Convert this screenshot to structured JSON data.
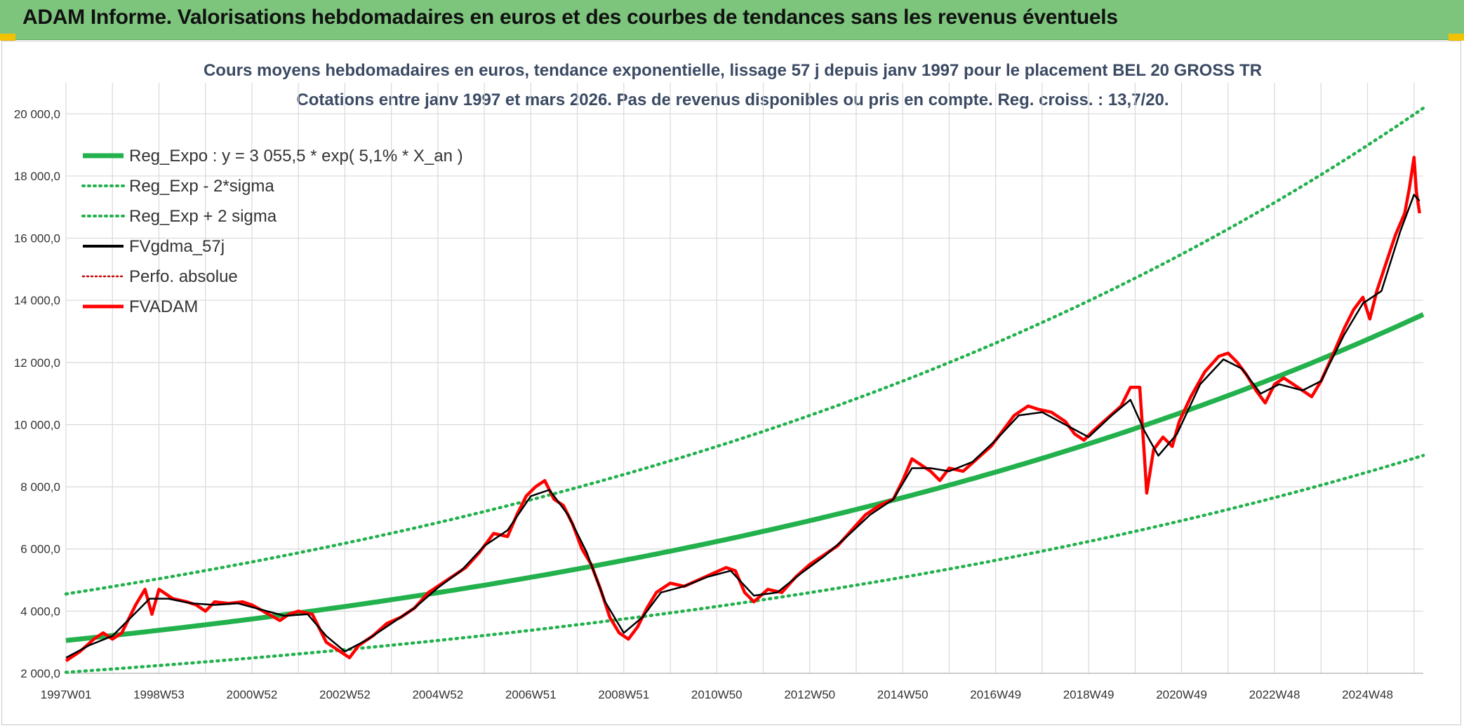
{
  "banner": {
    "title": "ADAM Informe. Valorisations hebdomadaires en euros et des courbes de tendances sans les revenus éventuels"
  },
  "colors": {
    "banner_bg": "#7dc57d",
    "trend": "#22b14c",
    "band": "#22b14c",
    "smooth": "#000000",
    "price": "#ff0000",
    "perfo": "#c00000",
    "grid": "#d9d9d9"
  },
  "chart_data": {
    "type": "line",
    "title": "Cours moyens hebdomadaires en euros, tendance exponentielle, lissage 57 j depuis janv 1997 pour le placement BEL 20 GROSS TR",
    "subtitle": "Cotations entre janv 1997 et mars 2026. Pas de revenus disponibles ou pris en compte. Reg. croiss. : 13,7/20.",
    "xlabel": "",
    "ylabel": "",
    "x_range": [
      1997.0,
      2026.2
    ],
    "ylim": [
      2000,
      21000
    ],
    "y_ticks": [
      2000,
      4000,
      6000,
      8000,
      10000,
      12000,
      14000,
      16000,
      18000,
      20000
    ],
    "y_tick_labels": [
      "2 000,0",
      "4 000,0",
      "6 000,0",
      "8 000,0",
      "10 000,0",
      "12 000,0",
      "14 000,0",
      "16 000,0",
      "18 000,0",
      "20 000,0"
    ],
    "x_ticks": [
      1997.0,
      1999.0,
      2001.0,
      2003.0,
      2005.0,
      2007.0,
      2009.0,
      2011.0,
      2013.0,
      2015.0,
      2017.0,
      2019.0,
      2021.0,
      2023.0,
      2025.0
    ],
    "x_tick_labels": [
      "1997W01",
      "1998W53",
      "2000W52",
      "2002W52",
      "2004W52",
      "2006W51",
      "2008W51",
      "2010W50",
      "2012W50",
      "2014W50",
      "2016W49",
      "2018W49",
      "2020W49",
      "2022W48",
      "2024W48"
    ],
    "grid": true,
    "legend_position": "top-left",
    "regression": {
      "a": 3055.5,
      "rate": 0.051,
      "band_low_factor": 0.665,
      "band_high_factor": 1.49
    },
    "series": [
      {
        "name": "Reg_Expo : y = 3 055,5 * exp( 5,1% *  X_an )",
        "kind": "trend",
        "style": "solid-thick"
      },
      {
        "name": "Reg_Exp - 2*sigma",
        "kind": "band_low",
        "style": "dotted"
      },
      {
        "name": "Reg_Exp + 2 sigma",
        "kind": "band_high",
        "style": "dotted"
      },
      {
        "name": "FVgdma_57j",
        "kind": "smooth",
        "style": "solid-thin"
      },
      {
        "name": "Perfo. absolue",
        "kind": "perfo",
        "style": "dotted-thin"
      },
      {
        "name": "FVADAM",
        "kind": "price",
        "style": "solid"
      }
    ],
    "price_points": [
      [
        1997.0,
        2400
      ],
      [
        1997.3,
        2700
      ],
      [
        1997.6,
        3100
      ],
      [
        1997.8,
        3300
      ],
      [
        1998.0,
        3100
      ],
      [
        1998.2,
        3300
      ],
      [
        1998.5,
        4200
      ],
      [
        1998.7,
        4700
      ],
      [
        1998.85,
        3900
      ],
      [
        1999.0,
        4700
      ],
      [
        1999.3,
        4400
      ],
      [
        1999.6,
        4300
      ],
      [
        1999.8,
        4200
      ],
      [
        2000.0,
        4000
      ],
      [
        2000.2,
        4300
      ],
      [
        2000.5,
        4250
      ],
      [
        2000.8,
        4300
      ],
      [
        2001.0,
        4200
      ],
      [
        2001.3,
        3950
      ],
      [
        2001.6,
        3700
      ],
      [
        2001.8,
        3900
      ],
      [
        2002.0,
        4000
      ],
      [
        2002.3,
        3900
      ],
      [
        2002.6,
        3000
      ],
      [
        2002.9,
        2700
      ],
      [
        2003.1,
        2500
      ],
      [
        2003.3,
        2900
      ],
      [
        2003.6,
        3200
      ],
      [
        2003.9,
        3600
      ],
      [
        2004.2,
        3800
      ],
      [
        2004.5,
        4100
      ],
      [
        2004.8,
        4600
      ],
      [
        2005.0,
        4800
      ],
      [
        2005.3,
        5100
      ],
      [
        2005.6,
        5400
      ],
      [
        2005.9,
        5900
      ],
      [
        2006.2,
        6500
      ],
      [
        2006.5,
        6400
      ],
      [
        2006.7,
        7100
      ],
      [
        2006.9,
        7700
      ],
      [
        2007.1,
        8000
      ],
      [
        2007.3,
        8200
      ],
      [
        2007.5,
        7600
      ],
      [
        2007.7,
        7400
      ],
      [
        2007.9,
        6800
      ],
      [
        2008.1,
        6000
      ],
      [
        2008.3,
        5500
      ],
      [
        2008.5,
        4700
      ],
      [
        2008.7,
        3800
      ],
      [
        2008.9,
        3300
      ],
      [
        2009.1,
        3100
      ],
      [
        2009.3,
        3500
      ],
      [
        2009.5,
        4100
      ],
      [
        2009.7,
        4600
      ],
      [
        2010.0,
        4900
      ],
      [
        2010.3,
        4800
      ],
      [
        2010.6,
        5000
      ],
      [
        2010.9,
        5200
      ],
      [
        2011.2,
        5400
      ],
      [
        2011.4,
        5300
      ],
      [
        2011.6,
        4600
      ],
      [
        2011.8,
        4300
      ],
      [
        2012.1,
        4700
      ],
      [
        2012.4,
        4600
      ],
      [
        2012.7,
        5100
      ],
      [
        2013.0,
        5500
      ],
      [
        2013.3,
        5800
      ],
      [
        2013.6,
        6100
      ],
      [
        2013.9,
        6600
      ],
      [
        2014.2,
        7100
      ],
      [
        2014.5,
        7400
      ],
      [
        2014.8,
        7600
      ],
      [
        2015.0,
        8200
      ],
      [
        2015.2,
        8900
      ],
      [
        2015.4,
        8700
      ],
      [
        2015.6,
        8500
      ],
      [
        2015.8,
        8200
      ],
      [
        2016.0,
        8600
      ],
      [
        2016.3,
        8500
      ],
      [
        2016.6,
        8900
      ],
      [
        2016.9,
        9300
      ],
      [
        2017.1,
        9700
      ],
      [
        2017.4,
        10300
      ],
      [
        2017.7,
        10600
      ],
      [
        2017.9,
        10500
      ],
      [
        2018.2,
        10400
      ],
      [
        2018.5,
        10100
      ],
      [
        2018.7,
        9700
      ],
      [
        2018.9,
        9500
      ],
      [
        2019.1,
        9800
      ],
      [
        2019.4,
        10200
      ],
      [
        2019.7,
        10600
      ],
      [
        2019.9,
        11200
      ],
      [
        2020.1,
        11200
      ],
      [
        2020.2,
        9000
      ],
      [
        2020.25,
        7800
      ],
      [
        2020.4,
        9200
      ],
      [
        2020.6,
        9600
      ],
      [
        2020.8,
        9300
      ],
      [
        2020.95,
        10100
      ],
      [
        2021.2,
        10900
      ],
      [
        2021.5,
        11700
      ],
      [
        2021.8,
        12200
      ],
      [
        2022.0,
        12300
      ],
      [
        2022.2,
        12000
      ],
      [
        2022.4,
        11600
      ],
      [
        2022.6,
        11100
      ],
      [
        2022.8,
        10700
      ],
      [
        2023.0,
        11300
      ],
      [
        2023.2,
        11500
      ],
      [
        2023.5,
        11200
      ],
      [
        2023.8,
        10900
      ],
      [
        2024.0,
        11400
      ],
      [
        2024.3,
        12400
      ],
      [
        2024.5,
        13100
      ],
      [
        2024.7,
        13700
      ],
      [
        2024.9,
        14100
      ],
      [
        2025.05,
        13400
      ],
      [
        2025.2,
        14300
      ],
      [
        2025.4,
        15200
      ],
      [
        2025.6,
        16100
      ],
      [
        2025.8,
        16800
      ],
      [
        2025.9,
        17600
      ],
      [
        2026.0,
        18600
      ],
      [
        2026.05,
        17500
      ],
      [
        2026.12,
        16800
      ]
    ],
    "smooth_points": [
      [
        1997.0,
        2500
      ],
      [
        1997.5,
        2900
      ],
      [
        1998.0,
        3200
      ],
      [
        1998.4,
        3800
      ],
      [
        1998.8,
        4400
      ],
      [
        1999.2,
        4400
      ],
      [
        1999.7,
        4250
      ],
      [
        2000.2,
        4200
      ],
      [
        2000.7,
        4250
      ],
      [
        2001.2,
        4050
      ],
      [
        2001.7,
        3850
      ],
      [
        2002.2,
        3900
      ],
      [
        2002.6,
        3200
      ],
      [
        2003.0,
        2700
      ],
      [
        2003.5,
        3100
      ],
      [
        2004.0,
        3600
      ],
      [
        2004.5,
        4100
      ],
      [
        2005.0,
        4750
      ],
      [
        2005.5,
        5300
      ],
      [
        2006.0,
        6100
      ],
      [
        2006.5,
        6600
      ],
      [
        2007.0,
        7700
      ],
      [
        2007.4,
        7900
      ],
      [
        2007.8,
        7100
      ],
      [
        2008.2,
        5900
      ],
      [
        2008.6,
        4300
      ],
      [
        2009.0,
        3300
      ],
      [
        2009.4,
        3800
      ],
      [
        2009.8,
        4600
      ],
      [
        2010.3,
        4800
      ],
      [
        2010.8,
        5100
      ],
      [
        2011.3,
        5300
      ],
      [
        2011.8,
        4500
      ],
      [
        2012.3,
        4600
      ],
      [
        2012.8,
        5200
      ],
      [
        2013.3,
        5750
      ],
      [
        2013.8,
        6400
      ],
      [
        2014.3,
        7100
      ],
      [
        2014.8,
        7600
      ],
      [
        2015.2,
        8600
      ],
      [
        2015.6,
        8600
      ],
      [
        2016.0,
        8500
      ],
      [
        2016.5,
        8800
      ],
      [
        2017.0,
        9500
      ],
      [
        2017.5,
        10300
      ],
      [
        2018.0,
        10400
      ],
      [
        2018.5,
        10000
      ],
      [
        2019.0,
        9600
      ],
      [
        2019.5,
        10300
      ],
      [
        2019.9,
        10800
      ],
      [
        2020.2,
        9800
      ],
      [
        2020.5,
        9000
      ],
      [
        2020.9,
        9700
      ],
      [
        2021.4,
        11300
      ],
      [
        2021.9,
        12100
      ],
      [
        2022.3,
        11800
      ],
      [
        2022.7,
        11000
      ],
      [
        2023.1,
        11300
      ],
      [
        2023.6,
        11100
      ],
      [
        2024.0,
        11400
      ],
      [
        2024.5,
        12900
      ],
      [
        2024.9,
        13900
      ],
      [
        2025.3,
        14300
      ],
      [
        2025.7,
        16200
      ],
      [
        2026.0,
        17400
      ],
      [
        2026.12,
        17200
      ]
    ]
  }
}
